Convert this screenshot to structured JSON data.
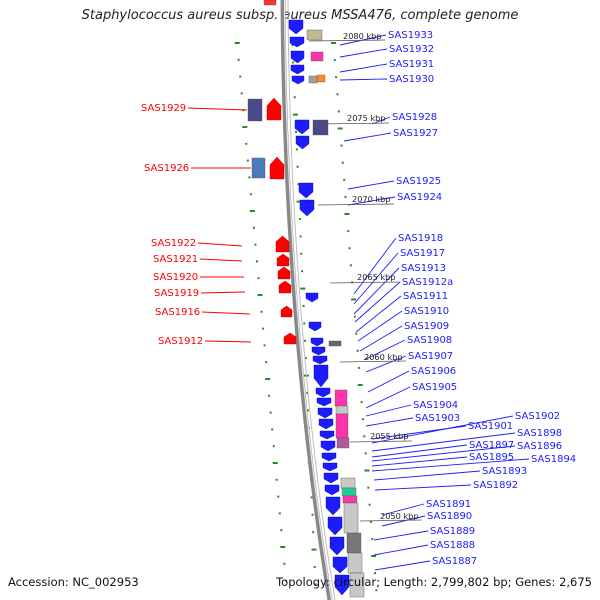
{
  "title": "Staphylococcus aureus subsp. aureus MSSA476, complete genome",
  "footer": {
    "accession": "Accession: NC_002953",
    "topology": "Topology: circular; Length: 2,799,802 bp; Genes: 2,675"
  },
  "colors": {
    "reverse_strand": "#ff0000",
    "forward_strand": "#1c1cff",
    "rna_gene": "#ff33aa",
    "other_feature": "#4a4a8a",
    "backbone": "#888888",
    "tick": "#2a8a2a"
  },
  "kbp_markers": [
    {
      "label": "2080 kbp"
    },
    {
      "label": "2075 kbp"
    },
    {
      "label": "2070 kbp"
    },
    {
      "label": "2065 kbp"
    },
    {
      "label": "2060 kbp"
    },
    {
      "label": "2055 kbp"
    },
    {
      "label": "2050 kbp"
    }
  ],
  "left_genes": [
    "SAS1929",
    "SAS1926",
    "SAS1922",
    "SAS1921",
    "SAS1920",
    "SAS1919",
    "SAS1916",
    "SAS1912"
  ],
  "right_genes": [
    "SAS1933",
    "SAS1932",
    "SAS1931",
    "SAS1930",
    "SAS1928",
    "SAS1927",
    "SAS1925",
    "SAS1924",
    "SAS1918",
    "SAS1917",
    "SAS1913",
    "SAS1912a",
    "SAS1911",
    "SAS1910",
    "SAS1909",
    "SAS1908",
    "SAS1907",
    "SAS1906",
    "SAS1905",
    "SAS1904",
    "SAS1903",
    "SAS1901",
    "SAS1902",
    "SAS1898",
    "SAS1897",
    "SAS1896",
    "SAS1895",
    "SAS1894",
    "SAS1893",
    "SAS1892",
    "SAS1891",
    "SAS1890",
    "SAS1889",
    "SAS1888",
    "SAS1887"
  ]
}
